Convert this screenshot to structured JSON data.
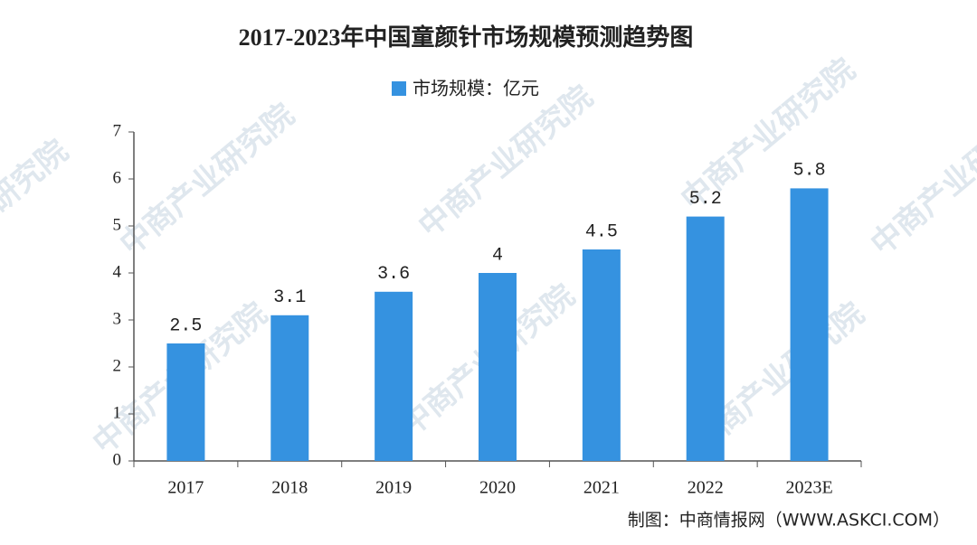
{
  "chart_data": {
    "type": "bar",
    "title": "2017-2023年中国童颜针市场规模预测趋势图",
    "categories": [
      "2017",
      "2018",
      "2019",
      "2020",
      "2021",
      "2022",
      "2023E"
    ],
    "series": [
      {
        "name": "市场规模：亿元",
        "color": "#3592e0",
        "values": [
          2.5,
          3.1,
          3.6,
          4,
          4.5,
          5.2,
          5.8
        ]
      }
    ],
    "ylim": [
      0,
      7
    ],
    "yticks": [
      0,
      1,
      2,
      3,
      4,
      5,
      6,
      7
    ],
    "grid": false,
    "legend": "top",
    "source": "制图：中商情报网（WWW.ASKCI.COM）",
    "watermark": "中商产业研究院"
  }
}
